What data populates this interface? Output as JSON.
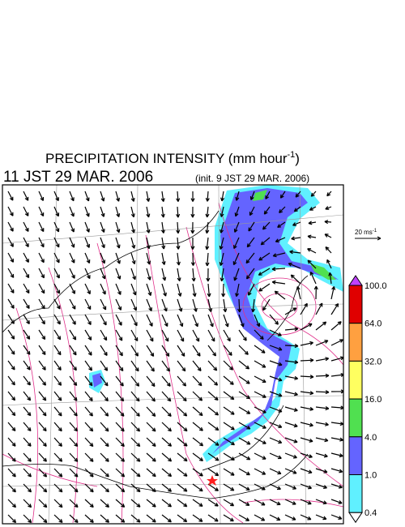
{
  "title": {
    "main": "PRECIPITATION INTENSITY (mm hour",
    "superscript": "-1",
    "close": ")"
  },
  "time": {
    "valid": "11 JST 29 MAR. 2006",
    "init": "(init. 9 JST 29 MAR. 2006)"
  },
  "scale_arrow": {
    "label": "20 ms",
    "superscript": "-1"
  },
  "legend": {
    "top_color": "#c040ff",
    "bottom_color": "#ffffff",
    "bands": [
      {
        "color": "#e00000"
      },
      {
        "color": "#ffa040"
      },
      {
        "color": "#ffff60"
      },
      {
        "color": "#50e050"
      },
      {
        "color": "#6464ff"
      },
      {
        "color": "#60f0ff"
      }
    ],
    "labels": [
      "100.0",
      "64.0",
      "32.0",
      "16.0",
      "4.0",
      "1.0",
      "0.4"
    ]
  }
}
